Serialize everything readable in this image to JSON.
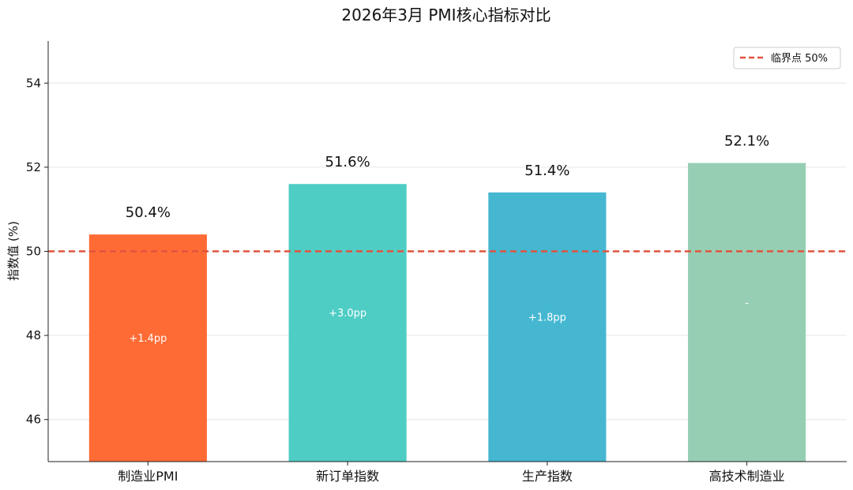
{
  "chart_data": {
    "type": "bar",
    "title": "2026年3月 PMI核心指标对比",
    "xlabel": "",
    "ylabel": "指数值 (%)",
    "ylim": [
      45,
      55
    ],
    "yticks": [
      46,
      48,
      50,
      52,
      54
    ],
    "grid": true,
    "legend_position": "top-right",
    "categories": [
      "制造业PMI",
      "新订单指数",
      "生产指数",
      "高技术制造业"
    ],
    "values": [
      50.4,
      51.6,
      51.4,
      52.1
    ],
    "value_labels": [
      "50.4%",
      "51.6%",
      "51.4%",
      "52.1%"
    ],
    "change_labels": [
      "+1.4pp",
      "+3.0pp",
      "+1.8pp",
      "-"
    ],
    "colors": [
      "#FF6B35",
      "#4ECDC4",
      "#45B7D1",
      "#96CEB4"
    ],
    "threshold": {
      "value": 50,
      "label": "临界点 50%",
      "color": "#E0533E"
    }
  }
}
